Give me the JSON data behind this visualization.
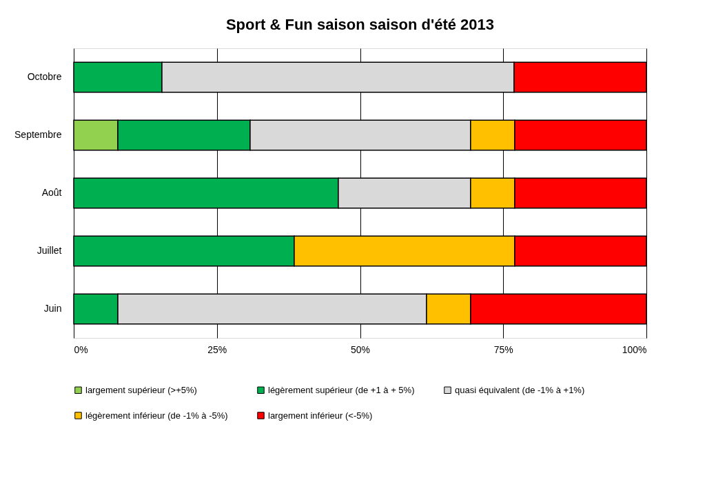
{
  "chart_data": {
    "type": "bar",
    "orientation": "horizontal",
    "stacked": true,
    "title": "Sport & Fun saison saison d'été 2013",
    "categories": [
      "Octobre",
      "Septembre",
      "Août",
      "Juillet",
      "Juin"
    ],
    "series": [
      {
        "name": "largement supérieur (>+5%)",
        "color": "#92d050",
        "values": [
          null,
          7.7,
          null,
          null,
          null
        ]
      },
      {
        "name": "légèrement supérieur (de +1 à + 5%)",
        "color": "#00b050",
        "values": [
          15.4,
          23.1,
          46.2,
          38.5,
          7.7
        ]
      },
      {
        "name": "quasi équivalent (de -1% à +1%)",
        "color": "#d9d9d9",
        "values": [
          61.5,
          38.5,
          23.1,
          null,
          53.9
        ]
      },
      {
        "name": "légèrement inférieur (de -1% à -5%)",
        "color": "#ffc000",
        "values": [
          null,
          7.7,
          7.7,
          38.5,
          7.7
        ]
      },
      {
        "name": "largement inférieur (<-5%)",
        "color": "#ff0000",
        "values": [
          23.1,
          23.0,
          23.0,
          23.0,
          30.7
        ]
      }
    ],
    "xlim": [
      0,
      100
    ],
    "xticks": [
      {
        "value": 0,
        "label": "0%"
      },
      {
        "value": 25,
        "label": "25%"
      },
      {
        "value": 50,
        "label": "50%"
      },
      {
        "value": 75,
        "label": "75%"
      },
      {
        "value": 100,
        "label": "100%"
      }
    ],
    "grid": "x",
    "legend": "bottom"
  }
}
